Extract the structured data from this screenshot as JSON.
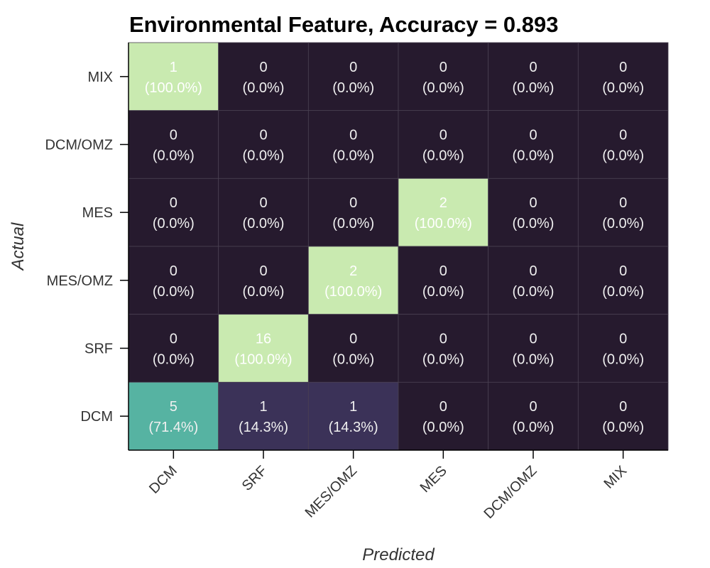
{
  "chart_data": {
    "type": "heatmap",
    "title": "Environmental Feature, Accuracy = 0.893",
    "xlabel": "Predicted",
    "ylabel": "Actual",
    "x_categories": [
      "DCM",
      "SRF",
      "MES/OMZ",
      "MES",
      "DCM/OMZ",
      "MIX"
    ],
    "y_categories": [
      "MIX",
      "DCM/OMZ",
      "MES",
      "MES/OMZ",
      "SRF",
      "DCM"
    ],
    "counts": [
      [
        1,
        0,
        0,
        0,
        0,
        0
      ],
      [
        0,
        0,
        0,
        0,
        0,
        0
      ],
      [
        0,
        0,
        0,
        2,
        0,
        0
      ],
      [
        0,
        0,
        2,
        0,
        0,
        0
      ],
      [
        0,
        16,
        0,
        0,
        0,
        0
      ],
      [
        5,
        1,
        1,
        0,
        0,
        0
      ]
    ],
    "percent_labels": [
      [
        "(100.0%)",
        "(0.0%)",
        "(0.0%)",
        "(0.0%)",
        "(0.0%)",
        "(0.0%)"
      ],
      [
        "(0.0%)",
        "(0.0%)",
        "(0.0%)",
        "(0.0%)",
        "(0.0%)",
        "(0.0%)"
      ],
      [
        "(0.0%)",
        "(0.0%)",
        "(0.0%)",
        "(100.0%)",
        "(0.0%)",
        "(0.0%)"
      ],
      [
        "(0.0%)",
        "(0.0%)",
        "(100.0%)",
        "(0.0%)",
        "(0.0%)",
        "(0.0%)"
      ],
      [
        "(0.0%)",
        "(100.0%)",
        "(0.0%)",
        "(0.0%)",
        "(0.0%)",
        "(0.0%)"
      ],
      [
        "(71.4%)",
        "(14.3%)",
        "(14.3%)",
        "(0.0%)",
        "(0.0%)",
        "(0.0%)"
      ]
    ],
    "row_fractions": [
      [
        1.0,
        0,
        0,
        0,
        0,
        0
      ],
      [
        0,
        0,
        0,
        0,
        0,
        0
      ],
      [
        0,
        0,
        0,
        1.0,
        0,
        0
      ],
      [
        0,
        0,
        1.0,
        0,
        0,
        0
      ],
      [
        0,
        1.0,
        0,
        0,
        0,
        0
      ],
      [
        0.714,
        0.143,
        0.143,
        0,
        0,
        0
      ]
    ],
    "colormap": {
      "stops": [
        [
          0.0,
          "#261a2e"
        ],
        [
          0.143,
          "#3b3258"
        ],
        [
          0.714,
          "#56b3a2"
        ],
        [
          1.0,
          "#c9eab0"
        ]
      ],
      "text_dark": "#f0f0f0",
      "text_light": "#ffffff"
    },
    "grid": true,
    "legend": "none"
  }
}
